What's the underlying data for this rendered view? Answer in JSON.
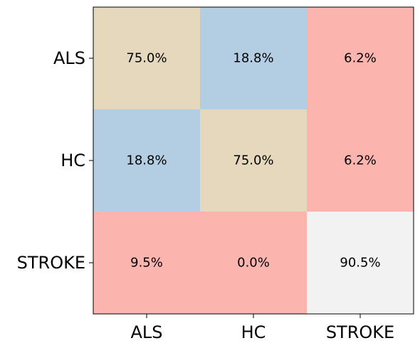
{
  "chart_data": {
    "type": "heatmap",
    "title": "",
    "xlabel": "",
    "ylabel": "",
    "x_categories": [
      "ALS",
      "HC",
      "STROKE"
    ],
    "y_categories": [
      "ALS",
      "HC",
      "STROKE"
    ],
    "values": [
      [
        75.0,
        18.8,
        6.2
      ],
      [
        18.8,
        75.0,
        6.2
      ],
      [
        9.5,
        0.0,
        90.5
      ]
    ],
    "cell_labels": [
      [
        "75.0%",
        "18.8%",
        "6.2%"
      ],
      [
        "18.8%",
        "75.0%",
        "6.2%"
      ],
      [
        "9.5%",
        "0.0%",
        "90.5%"
      ]
    ],
    "colormap": "Pastel1",
    "cell_colors": [
      [
        "#e5d8bd",
        "#b3cde3",
        "#fbb4ae"
      ],
      [
        "#b3cde3",
        "#e5d8bd",
        "#fbb4ae"
      ],
      [
        "#fbb4ae",
        "#fbb4ae",
        "#f2f2f2"
      ]
    ],
    "grid": false,
    "legend": "none"
  }
}
